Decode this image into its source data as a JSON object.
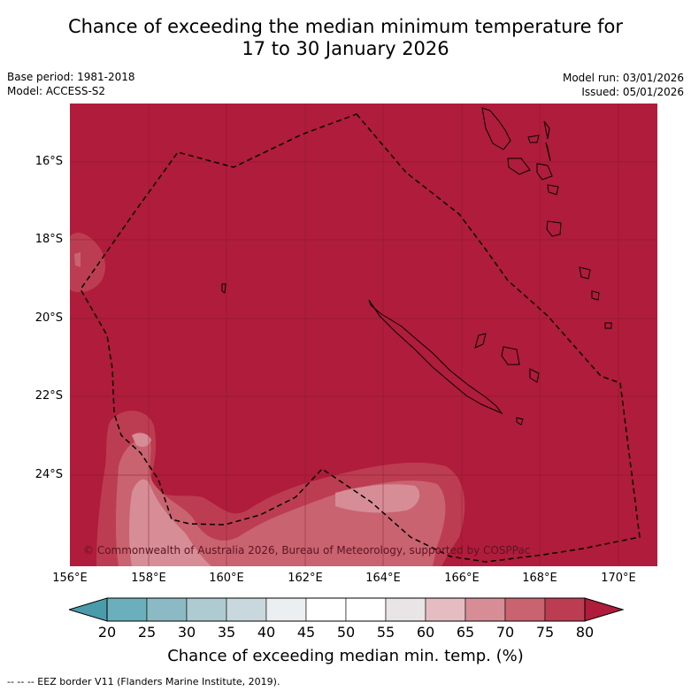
{
  "title": {
    "line1": "Chance of exceeding the median minimum temperature for",
    "line2": "17 to 30 January 2026"
  },
  "meta_left": {
    "base_period": "Base period: 1981-2018",
    "model": "Model: ACCESS-S2"
  },
  "meta_right": {
    "model_run": "Model run: 03/01/2026",
    "issued": "Issued: 05/01/2026"
  },
  "map": {
    "copyright": "© Commonwealth of Australia 2026, Bureau of Meteorology, supported by COSPPac",
    "lat_labels": [
      "16°S",
      "18°S",
      "20°S",
      "22°S",
      "24°S"
    ],
    "lon_labels": [
      "156°E",
      "158°E",
      "160°E",
      "162°E",
      "164°E",
      "166°E",
      "168°E",
      "170°E"
    ],
    "extent": {
      "lon_min": 156.0,
      "lon_max": 171.0,
      "lat_min": -26.0,
      "lat_max": -14.2
    },
    "dominant_category": "75-80+"
  },
  "colorbar": {
    "labels": [
      "20",
      "25",
      "30",
      "35",
      "40",
      "45",
      "50",
      "55",
      "60",
      "65",
      "70",
      "75",
      "80"
    ],
    "colors": [
      "#4a9bab",
      "#6aafbb",
      "#8cbac4",
      "#adcbd0",
      "#c9d8dc",
      "#eceff1",
      "#ffffff",
      "#ffffff",
      "#e9e4e5",
      "#e5bcc1",
      "#d68d96",
      "#c96370",
      "#bc3d51",
      "#b01c3b"
    ],
    "title": "Chance of exceeding median min. temp. (%)"
  },
  "footnote": "--  --  -- EEZ border V11 (Flanders Marine Institute, 2019)."
}
